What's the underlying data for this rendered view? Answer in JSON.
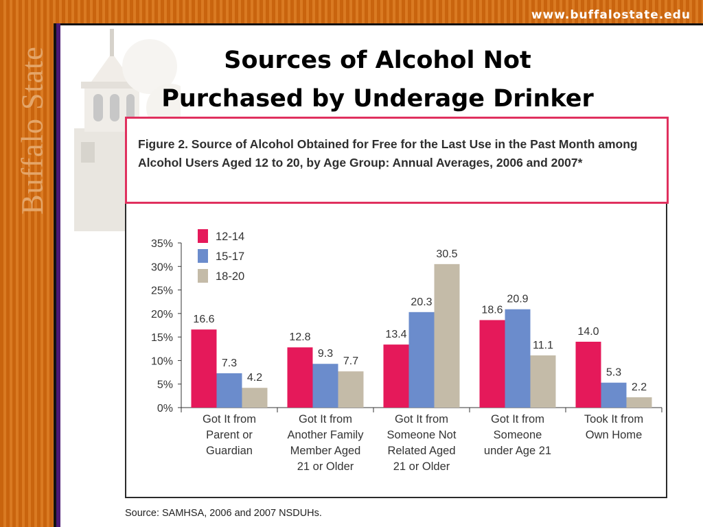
{
  "header": {
    "site_url": "www.buffalostate.edu",
    "wordmark": "Buffalo State"
  },
  "slide": {
    "title": "Sources of Alcohol Not\nPurchased by Underage Drinker"
  },
  "figure": {
    "caption": "Figure 2. Source of Alcohol Obtained for Free for the Last Use in the Past Month among Alcohol Users Aged 12 to 20, by Age Group: Annual Averages, 2006 and 2007*",
    "source": "Source: SAMHSA, 2006 and 2007 NSDUHs."
  },
  "colors": {
    "orange_band": "#c9640e",
    "purple_rule": "#4b1a74",
    "caption_border": "#e0305e",
    "series_12_14": "#e5195a",
    "series_15_17": "#6b8ccc",
    "series_18_20": "#c4bba8"
  },
  "chart_data": {
    "type": "bar",
    "title": "",
    "xlabel": "",
    "ylabel": "",
    "ylim": [
      0,
      35
    ],
    "yticks": [
      "0%",
      "5%",
      "10%",
      "15%",
      "20%",
      "25%",
      "30%",
      "35%"
    ],
    "grid": false,
    "legend_position": "top-left",
    "categories": [
      [
        "Got It from",
        "Parent or",
        "Guardian"
      ],
      [
        "Got It from",
        "Another Family",
        "Member Aged",
        "21 or Older"
      ],
      [
        "Got It from",
        "Someone Not",
        "Related Aged",
        "21 or Older"
      ],
      [
        "Got It from",
        "Someone",
        "under Age 21"
      ],
      [
        "Took It from",
        "Own Home"
      ]
    ],
    "series": [
      {
        "name": "12-14",
        "color": "#e5195a",
        "values": [
          16.6,
          12.8,
          13.4,
          18.6,
          14.0
        ]
      },
      {
        "name": "15-17",
        "color": "#6b8ccc",
        "values": [
          7.3,
          9.3,
          20.3,
          20.9,
          5.3
        ]
      },
      {
        "name": "18-20",
        "color": "#c4bba8",
        "values": [
          4.2,
          7.7,
          30.5,
          11.1,
          2.2
        ]
      }
    ]
  }
}
